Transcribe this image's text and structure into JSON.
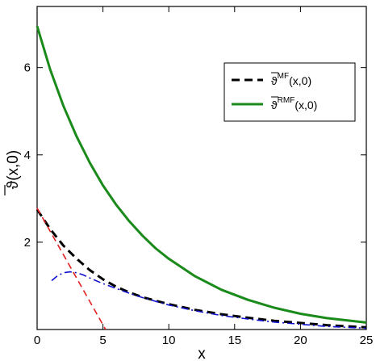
{
  "chart_data": {
    "type": "line",
    "xlabel": "x",
    "ylabel": {
      "main": "ϑ(x,0)",
      "overline": true
    },
    "xlim": [
      0,
      25
    ],
    "ylim": [
      0,
      7.4
    ],
    "xticks": [
      0,
      5,
      10,
      15,
      20,
      25
    ],
    "yticks": [
      2,
      4,
      6
    ],
    "grid": false,
    "legend_position": "top-right",
    "series": [
      {
        "name": "ϑ^MF(x,0)",
        "legend": {
          "sym": "ϑ",
          "sup": "MF",
          "args": "(x,0)"
        },
        "style": "dashed",
        "color": "#000000",
        "x": [
          0,
          1,
          2,
          3,
          4,
          5,
          6,
          7,
          8,
          10,
          12,
          14,
          16,
          18,
          20,
          22,
          25
        ],
        "y": [
          2.75,
          2.3,
          1.92,
          1.62,
          1.36,
          1.15,
          0.98,
          0.85,
          0.74,
          0.58,
          0.45,
          0.35,
          0.27,
          0.2,
          0.15,
          0.1,
          0.05
        ]
      },
      {
        "name": "ϑ^RMF(x,0)",
        "legend": {
          "sym": "ϑ",
          "sup": "RMF",
          "args": "(x,0)"
        },
        "style": "solid",
        "color": "#1a8a1a",
        "x": [
          0,
          1,
          2,
          3,
          4,
          5,
          6,
          7,
          8,
          9,
          10,
          12,
          14,
          16,
          18,
          20,
          22,
          25
        ],
        "y": [
          6.95,
          5.95,
          5.12,
          4.42,
          3.82,
          3.3,
          2.86,
          2.48,
          2.15,
          1.86,
          1.62,
          1.22,
          0.91,
          0.68,
          0.5,
          0.36,
          0.26,
          0.16
        ]
      },
      {
        "style": "dashed",
        "color": "#e02020",
        "x": [
          0,
          5.2
        ],
        "y": [
          2.78,
          0
        ]
      },
      {
        "style": "dash-dot",
        "color": "#1010d0",
        "x": [
          1.1,
          1.5,
          2,
          2.5,
          3,
          3.5,
          4,
          5,
          6,
          7,
          8,
          10,
          12,
          14,
          16,
          18,
          20,
          22,
          25
        ],
        "y": [
          1.12,
          1.22,
          1.3,
          1.32,
          1.3,
          1.25,
          1.18,
          1.05,
          0.94,
          0.83,
          0.73,
          0.56,
          0.43,
          0.32,
          0.24,
          0.17,
          0.12,
          0.07,
          0.03
        ]
      }
    ]
  }
}
